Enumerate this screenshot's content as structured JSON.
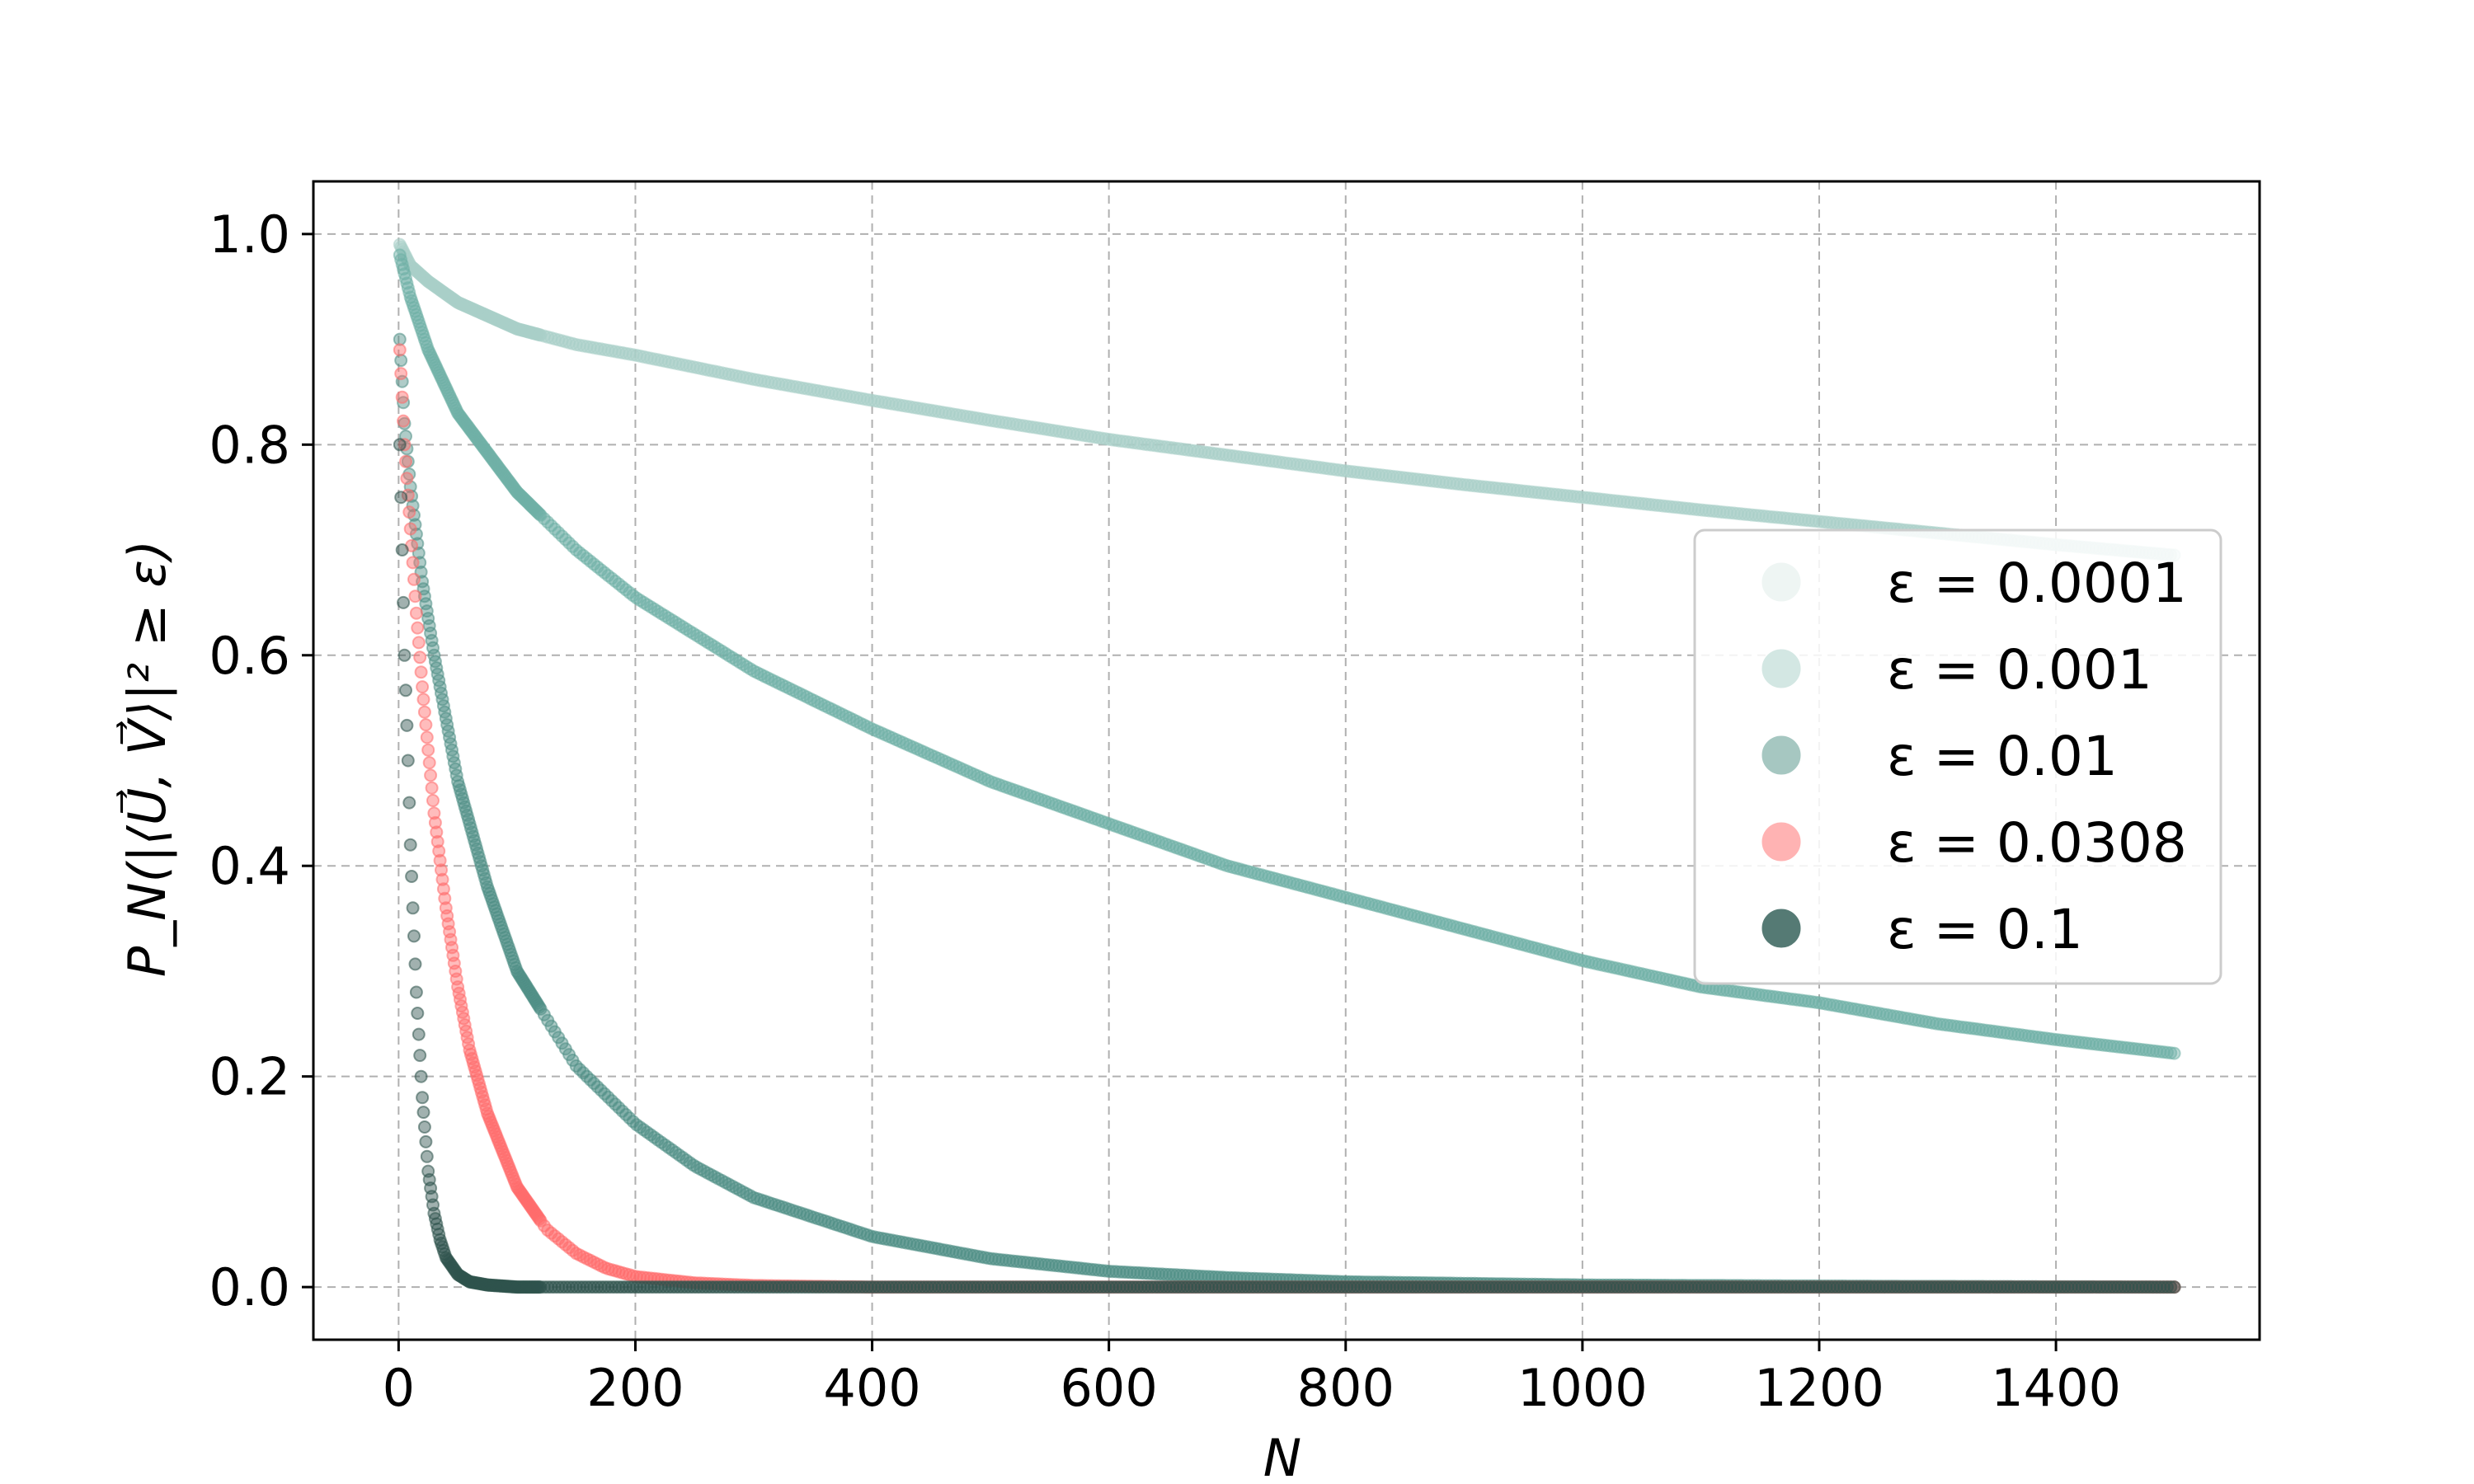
{
  "chart_data": {
    "type": "scatter",
    "xlabel": "N",
    "ylabel": "P_N(|⟨U⃗, V⃗⟩|² ≥ ε)",
    "xlim": [
      -72,
      1572
    ],
    "ylim": [
      -0.05,
      1.05
    ],
    "xticks": [
      0,
      200,
      400,
      600,
      800,
      1000,
      1200,
      1400
    ],
    "xtick_labels": [
      "0",
      "200",
      "400",
      "600",
      "800",
      "1000",
      "1200",
      "1400"
    ],
    "yticks": [
      0.0,
      0.2,
      0.4,
      0.6,
      0.8,
      1.0
    ],
    "ytick_labels": [
      "0.0",
      "0.2",
      "0.4",
      "0.6",
      "0.8",
      "1.0"
    ],
    "grid": true,
    "legend_position": "center-right",
    "series": [
      {
        "name": "ε = 0.0001",
        "color": "#a9cfc8",
        "legend_color": "#eef5f3",
        "x": [
          1,
          10,
          25,
          50,
          100,
          150,
          200,
          300,
          400,
          500,
          600,
          700,
          800,
          900,
          1000,
          1100,
          1200,
          1300,
          1400,
          1500
        ],
        "y": [
          0.99,
          0.97,
          0.955,
          0.935,
          0.91,
          0.895,
          0.885,
          0.862,
          0.842,
          0.823,
          0.805,
          0.79,
          0.775,
          0.762,
          0.75,
          0.738,
          0.727,
          0.716,
          0.705,
          0.695
        ]
      },
      {
        "name": "ε = 0.001",
        "color": "#6fb0a6",
        "legend_color": "#d3e7e3",
        "x": [
          1,
          10,
          25,
          50,
          100,
          150,
          200,
          300,
          400,
          500,
          600,
          700,
          800,
          900,
          1000,
          1100,
          1200,
          1300,
          1400,
          1500
        ],
        "y": [
          0.98,
          0.94,
          0.89,
          0.83,
          0.755,
          0.7,
          0.655,
          0.585,
          0.53,
          0.48,
          0.44,
          0.4,
          0.37,
          0.34,
          0.31,
          0.285,
          0.27,
          0.25,
          0.235,
          0.222
        ]
      },
      {
        "name": "ε = 0.01",
        "color": "#4e8e85",
        "legend_color": "#a6c7c1",
        "x": [
          1,
          5,
          10,
          20,
          30,
          40,
          50,
          75,
          100,
          150,
          200,
          250,
          300,
          400,
          500,
          600,
          700,
          800,
          1000,
          1200,
          1500
        ],
        "y": [
          0.9,
          0.82,
          0.76,
          0.67,
          0.6,
          0.54,
          0.48,
          0.38,
          0.3,
          0.21,
          0.155,
          0.115,
          0.085,
          0.048,
          0.027,
          0.015,
          0.009,
          0.005,
          0.002,
          0.001,
          0.0
        ]
      },
      {
        "name": "ε = 0.0308",
        "color": "#ff6b6b",
        "legend_color": "#ffb3b3",
        "x": [
          1,
          5,
          10,
          15,
          20,
          25,
          30,
          40,
          50,
          60,
          75,
          100,
          125,
          150,
          175,
          200,
          250,
          300,
          400,
          600,
          800,
          1000,
          1200,
          1500
        ],
        "y": [
          0.89,
          0.8,
          0.72,
          0.64,
          0.57,
          0.51,
          0.45,
          0.36,
          0.285,
          0.225,
          0.165,
          0.095,
          0.055,
          0.032,
          0.018,
          0.01,
          0.004,
          0.0015,
          0.0,
          0.0,
          0.0,
          0.0,
          0.0,
          0.0
        ]
      },
      {
        "name": "ε = 0.1",
        "color": "#2f534d",
        "legend_color": "#557a74",
        "x": [
          1,
          3,
          5,
          8,
          10,
          12,
          15,
          18,
          20,
          25,
          30,
          35,
          40,
          50,
          60,
          75,
          100,
          150,
          200,
          300,
          500,
          800,
          1100,
          1500
        ],
        "y": [
          0.8,
          0.7,
          0.6,
          0.5,
          0.42,
          0.36,
          0.28,
          0.22,
          0.18,
          0.11,
          0.07,
          0.045,
          0.028,
          0.012,
          0.005,
          0.002,
          0.0,
          0.0,
          0.0,
          0.0,
          0.0,
          0.0,
          0.0,
          0.0
        ]
      }
    ]
  }
}
